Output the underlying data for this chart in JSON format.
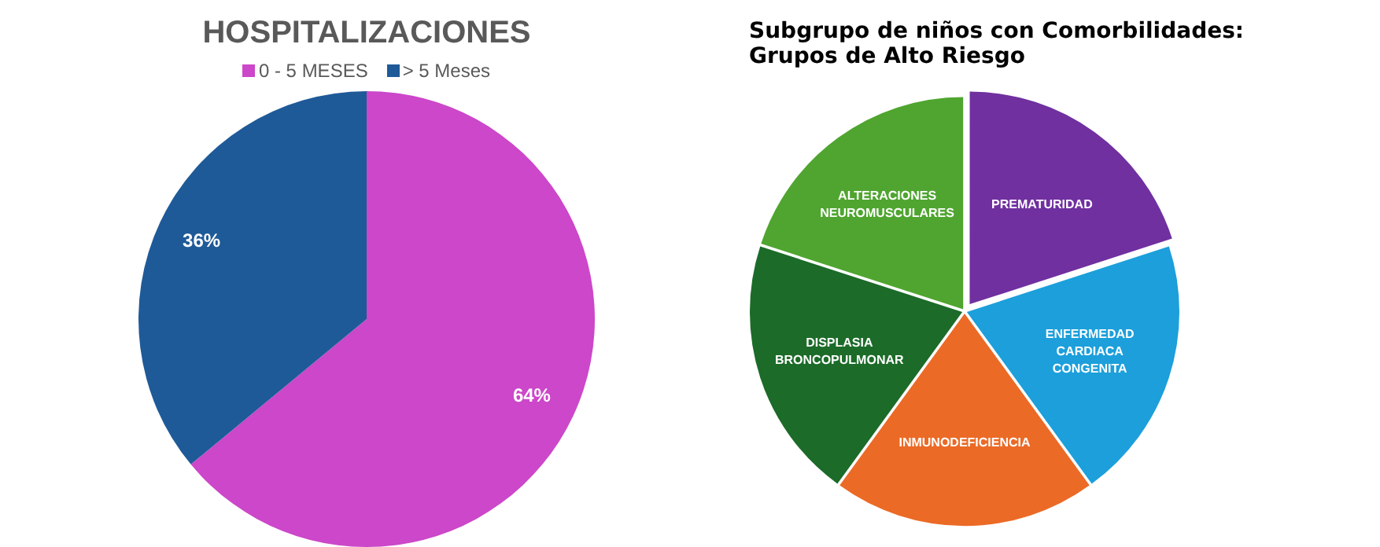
{
  "chart_data": [
    {
      "type": "pie",
      "title": "HOSPITALIZACIONES",
      "categories": [
        "0 - 5 MESES",
        "> 5 Meses"
      ],
      "values": [
        64,
        36
      ],
      "colors": [
        "#cc47c9",
        "#1f5a98"
      ],
      "legend": "top",
      "value_labels": [
        "64%",
        "36%"
      ]
    },
    {
      "type": "pie",
      "title": "Subgrupo de niños con Comorbilidades: Grupos de Alto Riesgo",
      "categories": [
        "PREMATURIDAD",
        "ENFERMEDAD CARDIACA CONGENITA",
        "INMUNODEFICIENCIA",
        "DISPLASIA BRONCOPULMONAR",
        "ALTERACIONES NEUROMUSCULARES"
      ],
      "values": [
        20,
        20,
        20,
        20,
        20
      ],
      "colors": [
        "#7030a0",
        "#1c9fdb",
        "#eb6a26",
        "#1c6b29",
        "#4fa52f"
      ],
      "legend": false
    }
  ]
}
